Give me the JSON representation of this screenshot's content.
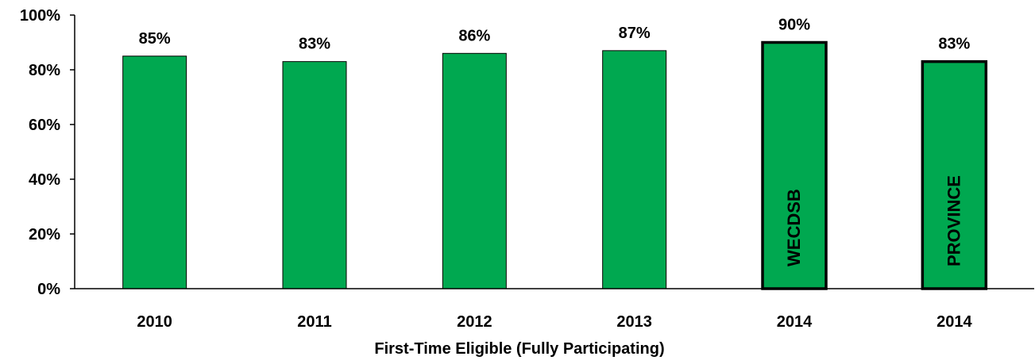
{
  "chart_data": {
    "type": "bar",
    "categories": [
      "2010",
      "2011",
      "2012",
      "2013",
      "2014",
      "2014"
    ],
    "values": [
      85,
      83,
      86,
      87,
      90,
      83
    ],
    "data_labels": [
      "85%",
      "83%",
      "86%",
      "87%",
      "90%",
      "83%"
    ],
    "bar_inner_labels": [
      "",
      "",
      "",
      "",
      "WECDSB",
      "PROVINCE"
    ],
    "highlighted_bars": [
      4,
      5
    ],
    "title": "",
    "xlabel": "First-Time Eligible (Fully Participating)",
    "ylabel": "",
    "ylim": [
      0,
      100
    ],
    "y_ticks": [
      0,
      20,
      40,
      60,
      80,
      100
    ],
    "y_tick_labels": [
      "0%",
      "20%",
      "40%",
      "60%",
      "80%",
      "100%"
    ],
    "grid": false,
    "legend": "none",
    "bar_color": "#00A850",
    "outline_color": "#000000"
  }
}
